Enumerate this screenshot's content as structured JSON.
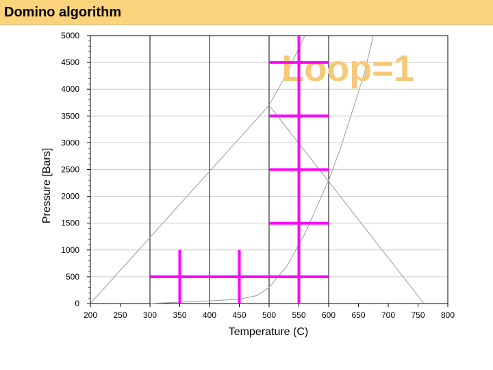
{
  "header": {
    "title": "Domino algorithm"
  },
  "colors": {
    "accent": "#ff00ff",
    "header_bg": "#fbd37a",
    "overlay_text": "#f6c877",
    "grid": "#000000",
    "curve": "#999999"
  },
  "chart_data": {
    "type": "line",
    "title": "",
    "overlay_text": "Loop=1",
    "xlabel": "Temperature (C)",
    "ylabel": "Pressure [Bars]",
    "xlim": [
      200,
      800
    ],
    "ylim": [
      0,
      5000
    ],
    "xticks": [
      200,
      250,
      300,
      350,
      400,
      450,
      500,
      550,
      600,
      650,
      700,
      750,
      800
    ],
    "yticks": [
      0,
      500,
      1000,
      1500,
      2000,
      2500,
      3000,
      3500,
      4000,
      4500,
      5000
    ],
    "vertical_gridlines_x": [
      300,
      400,
      500,
      600
    ],
    "series": [
      {
        "values": [
          [
            200,
            0
          ],
          [
            500,
            3700
          ],
          [
            760,
            0
          ]
        ]
      },
      {
        "values": [
          [
            300,
            0
          ],
          [
            400,
            50
          ],
          [
            450,
            80
          ],
          [
            480,
            150
          ],
          [
            500,
            300
          ],
          [
            530,
            700
          ],
          [
            560,
            1300
          ],
          [
            580,
            1800
          ],
          [
            600,
            2300
          ],
          [
            620,
            2900
          ],
          [
            640,
            3600
          ],
          [
            660,
            4300
          ],
          [
            675,
            5000
          ]
        ]
      },
      {
        "values": [
          [
            500,
            3700
          ],
          [
            530,
            4300
          ],
          [
            560,
            5000
          ]
        ]
      }
    ],
    "domino_grid": {
      "horizontal": [
        {
          "y": 500,
          "x": [
            300,
            600
          ]
        },
        {
          "y": 1500,
          "x": [
            500,
            600
          ]
        },
        {
          "y": 2500,
          "x": [
            500,
            600
          ]
        },
        {
          "y": 3500,
          "x": [
            500,
            600
          ]
        },
        {
          "y": 4500,
          "x": [
            500,
            600
          ]
        }
      ],
      "vertical": [
        {
          "x": 350,
          "y": [
            0,
            1000
          ]
        },
        {
          "x": 450,
          "y": [
            0,
            1000
          ]
        },
        {
          "x": 550,
          "y": [
            0,
            5000
          ]
        }
      ]
    }
  }
}
